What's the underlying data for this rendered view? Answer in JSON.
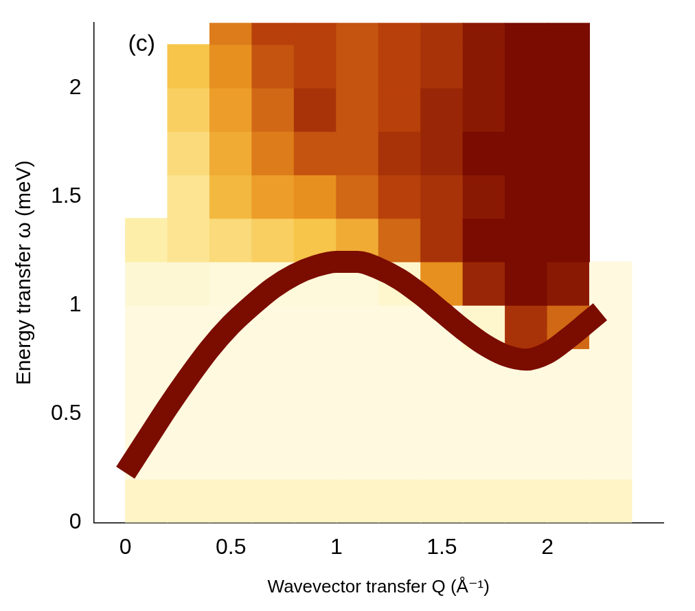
{
  "chart_data": {
    "type": "heatmap",
    "title": "(c)",
    "x_label": "Wavevector transfer Q (Å⁻¹)",
    "y_label": "Energy transfer ω (meV)",
    "xlim": [
      -0.15,
      2.55
    ],
    "ylim": [
      0,
      2.3
    ],
    "xticks": [
      0,
      0.5,
      1,
      1.5,
      2
    ],
    "yticks": [
      0,
      0.5,
      1,
      1.5,
      2
    ],
    "grid": false,
    "x_edges": [
      0,
      0.2,
      0.4,
      0.6,
      0.8,
      1.0,
      1.2,
      1.4,
      1.6,
      1.8,
      2.0,
      2.2,
      2.4
    ],
    "y_edges": [
      0,
      0.2,
      0.4,
      0.6,
      0.8,
      1.0,
      1.2,
      1.4,
      1.6,
      1.8,
      2.0,
      2.2,
      2.4
    ],
    "zlim": [
      0,
      1
    ],
    "cells": [
      [
        0.12,
        0.12,
        0.12,
        0.12,
        0.12,
        0.12,
        0.12,
        0.12,
        0.12,
        0.12,
        0.12,
        0.12
      ],
      [
        0.05,
        0.05,
        0.05,
        0.05,
        0.05,
        0.05,
        0.05,
        0.05,
        0.05,
        0.05,
        0.05,
        0.05
      ],
      [
        0.05,
        0.05,
        0.05,
        0.05,
        0.05,
        0.05,
        0.05,
        0.05,
        0.05,
        0.05,
        0.05,
        0.05
      ],
      [
        0.05,
        0.05,
        0.05,
        0.05,
        0.05,
        0.05,
        0.05,
        0.05,
        0.05,
        0.05,
        0.05,
        0.05
      ],
      [
        0.05,
        0.05,
        0.05,
        0.05,
        0.05,
        0.05,
        0.05,
        0.05,
        0.1,
        0.85,
        0.7,
        0.05
      ],
      [
        0.08,
        0.08,
        0.06,
        0.06,
        0.06,
        0.06,
        0.1,
        0.6,
        0.9,
        1,
        0.95,
        0.05
      ],
      [
        0.2,
        0.25,
        0.3,
        0.35,
        0.4,
        0.5,
        0.7,
        0.85,
        1,
        1,
        1,
        null
      ],
      [
        null,
        0.25,
        0.45,
        0.55,
        0.6,
        0.7,
        0.8,
        0.85,
        0.95,
        1,
        1,
        null
      ],
      [
        null,
        0.3,
        0.5,
        0.65,
        0.75,
        0.75,
        0.85,
        0.9,
        1,
        1,
        1,
        null
      ],
      [
        null,
        0.35,
        0.55,
        0.7,
        0.85,
        0.75,
        0.8,
        0.9,
        0.95,
        1,
        1,
        null
      ],
      [
        null,
        0.4,
        0.6,
        0.75,
        0.8,
        0.75,
        0.8,
        0.85,
        0.95,
        1,
        1,
        null
      ],
      [
        null,
        null,
        0.65,
        0.8,
        0.8,
        0.75,
        0.8,
        0.85,
        0.95,
        1,
        1,
        null
      ]
    ],
    "series": [
      {
        "type": "line",
        "color": "#7b0c00",
        "x": [
          0,
          0.1,
          0.2,
          0.3,
          0.4,
          0.5,
          0.6,
          0.7,
          0.8,
          0.9,
          1.0,
          1.1,
          1.2,
          1.3,
          1.4,
          1.5,
          1.6,
          1.7,
          1.8,
          1.9,
          2.0,
          2.1,
          2.2,
          2.25
        ],
        "values": [
          0.23,
          0.38,
          0.53,
          0.67,
          0.8,
          0.91,
          1.0,
          1.08,
          1.14,
          1.18,
          1.2,
          1.2,
          1.17,
          1.12,
          1.05,
          0.97,
          0.89,
          0.82,
          0.77,
          0.75,
          0.78,
          0.85,
          0.93,
          0.97
        ]
      }
    ]
  }
}
